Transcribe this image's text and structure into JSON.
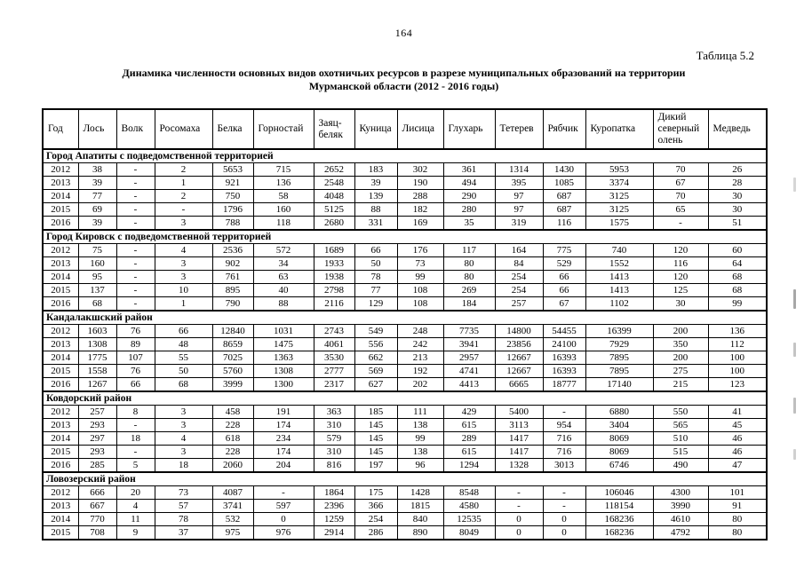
{
  "page": {
    "number": "164",
    "table_label": "Таблица 5.2",
    "title_line1": "Динамика численности основных видов охотничьих ресурсов в разрезе муниципальных образований на территории",
    "title_line2": "Мурманской области (2012 - 2016 годы)"
  },
  "table": {
    "columns": [
      "Год",
      "Лось",
      "Волк",
      "Росомаха",
      "Белка",
      "Горностай",
      "Заяц-беляк",
      "Куница",
      "Лисица",
      "Глухарь",
      "Тетерев",
      "Рябчик",
      "Куропатка",
      "Дикий северный олень",
      "Медведь"
    ],
    "sections": [
      {
        "name": "Город Апатиты с подведомственной территорией",
        "rows": [
          [
            "2012",
            "38",
            "-",
            "2",
            "5653",
            "715",
            "2652",
            "183",
            "302",
            "361",
            "1314",
            "1430",
            "5953",
            "70",
            "26"
          ],
          [
            "2013",
            "39",
            "-",
            "1",
            "921",
            "136",
            "2548",
            "39",
            "190",
            "494",
            "395",
            "1085",
            "3374",
            "67",
            "28"
          ],
          [
            "2014",
            "77",
            "-",
            "2",
            "750",
            "58",
            "4048",
            "139",
            "288",
            "290",
            "97",
            "687",
            "3125",
            "70",
            "30"
          ],
          [
            "2015",
            "69",
            "-",
            "-",
            "1796",
            "160",
            "5125",
            "88",
            "182",
            "280",
            "97",
            "687",
            "3125",
            "65",
            "30"
          ],
          [
            "2016",
            "39",
            "-",
            "3",
            "788",
            "118",
            "2680",
            "331",
            "169",
            "35",
            "319",
            "116",
            "1575",
            "-",
            "51"
          ]
        ]
      },
      {
        "name": "Город Кировск с подведомственной территорией",
        "rows": [
          [
            "2012",
            "75",
            "-",
            "4",
            "2536",
            "572",
            "1689",
            "66",
            "176",
            "117",
            "164",
            "775",
            "740",
            "120",
            "60"
          ],
          [
            "2013",
            "160",
            "-",
            "3",
            "902",
            "34",
            "1933",
            "50",
            "73",
            "80",
            "84",
            "529",
            "1552",
            "116",
            "64"
          ],
          [
            "2014",
            "95",
            "-",
            "3",
            "761",
            "63",
            "1938",
            "78",
            "99",
            "80",
            "254",
            "66",
            "1413",
            "120",
            "68"
          ],
          [
            "2015",
            "137",
            "-",
            "10",
            "895",
            "40",
            "2798",
            "77",
            "108",
            "269",
            "254",
            "66",
            "1413",
            "125",
            "68"
          ],
          [
            "2016",
            "68",
            "-",
            "1",
            "790",
            "88",
            "2116",
            "129",
            "108",
            "184",
            "257",
            "67",
            "1102",
            "30",
            "99"
          ]
        ]
      },
      {
        "name": "Кандалакшский район",
        "rows": [
          [
            "2012",
            "1603",
            "76",
            "66",
            "12840",
            "1031",
            "2743",
            "549",
            "248",
            "7735",
            "14800",
            "54455",
            "16399",
            "200",
            "136"
          ],
          [
            "2013",
            "1308",
            "89",
            "48",
            "8659",
            "1475",
            "4061",
            "556",
            "242",
            "3941",
            "23856",
            "24100",
            "7929",
            "350",
            "112"
          ],
          [
            "2014",
            "1775",
            "107",
            "55",
            "7025",
            "1363",
            "3530",
            "662",
            "213",
            "2957",
            "12667",
            "16393",
            "7895",
            "200",
            "100"
          ],
          [
            "2015",
            "1558",
            "76",
            "50",
            "5760",
            "1308",
            "2777",
            "569",
            "192",
            "4741",
            "12667",
            "16393",
            "7895",
            "275",
            "100"
          ],
          [
            "2016",
            "1267",
            "66",
            "68",
            "3999",
            "1300",
            "2317",
            "627",
            "202",
            "4413",
            "6665",
            "18777",
            "17140",
            "215",
            "123"
          ]
        ]
      },
      {
        "name": "Ковдорский район",
        "rows": [
          [
            "2012",
            "257",
            "8",
            "3",
            "458",
            "191",
            "363",
            "185",
            "111",
            "429",
            "5400",
            "-",
            "6880",
            "550",
            "41"
          ],
          [
            "2013",
            "293",
            "-",
            "3",
            "228",
            "174",
            "310",
            "145",
            "138",
            "615",
            "3113",
            "954",
            "3404",
            "565",
            "45"
          ],
          [
            "2014",
            "297",
            "18",
            "4",
            "618",
            "234",
            "579",
            "145",
            "99",
            "289",
            "1417",
            "716",
            "8069",
            "510",
            "46"
          ],
          [
            "2015",
            "293",
            "-",
            "3",
            "228",
            "174",
            "310",
            "145",
            "138",
            "615",
            "1417",
            "716",
            "8069",
            "515",
            "46"
          ],
          [
            "2016",
            "285",
            "5",
            "18",
            "2060",
            "204",
            "816",
            "197",
            "96",
            "1294",
            "1328",
            "3013",
            "6746",
            "490",
            "47"
          ]
        ]
      },
      {
        "name": "Ловозерский район",
        "rows": [
          [
            "2012",
            "666",
            "20",
            "73",
            "4087",
            "-",
            "1864",
            "175",
            "1428",
            "8548",
            "-",
            "-",
            "106046",
            "4300",
            "101"
          ],
          [
            "2013",
            "667",
            "4",
            "57",
            "3741",
            "597",
            "2396",
            "366",
            "1815",
            "4580",
            "-",
            "-",
            "118154",
            "3990",
            "91"
          ],
          [
            "2014",
            "770",
            "11",
            "78",
            "532",
            "0",
            "1259",
            "254",
            "840",
            "12535",
            "0",
            "0",
            "168236",
            "4610",
            "80"
          ],
          [
            "2015",
            "708",
            "9",
            "37",
            "975",
            "976",
            "2914",
            "286",
            "890",
            "8049",
            "0",
            "0",
            "168236",
            "4792",
            "80"
          ]
        ]
      }
    ]
  }
}
